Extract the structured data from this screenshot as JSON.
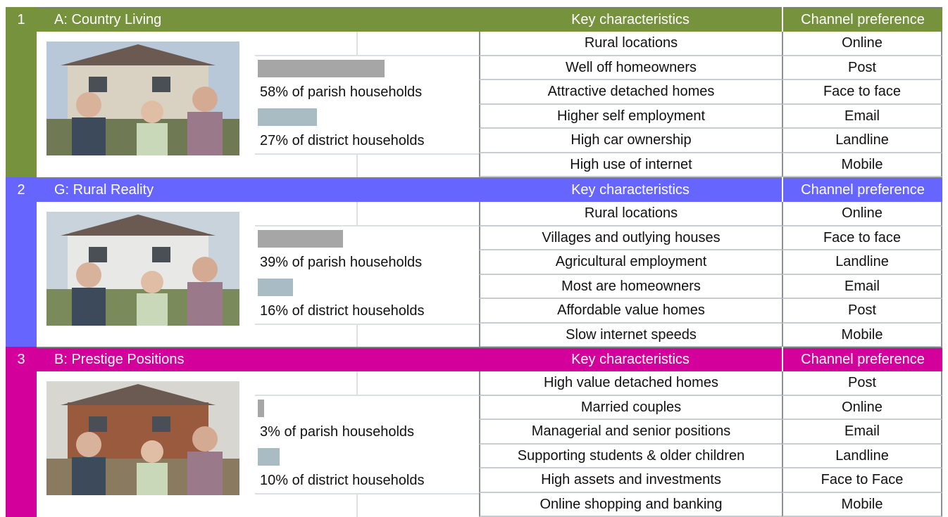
{
  "segments": [
    {
      "number": "1",
      "title": "A: Country Living",
      "header_characteristics": "Key characteristics",
      "header_channel": "Channel preference",
      "color": "#76923c",
      "parish": {
        "value": 58,
        "label": "58% of parish households"
      },
      "district": {
        "value": 27,
        "label": "27% of district households"
      },
      "rows": [
        [
          "Rural locations",
          "Online"
        ],
        [
          "Well off homeowners",
          "Post"
        ],
        [
          "Attractive detached homes",
          "Face to face"
        ],
        [
          "Higher self employment",
          "Email"
        ],
        [
          "High car ownership",
          "Landline"
        ],
        [
          "High use of internet",
          "Mobile"
        ]
      ]
    },
    {
      "number": "2",
      "title": "G: Rural Reality",
      "header_characteristics": "Key characteristics",
      "header_channel": "Channel preference",
      "color": "#6666ff",
      "parish": {
        "value": 39,
        "label": "39% of parish households"
      },
      "district": {
        "value": 16,
        "label": "16% of district households"
      },
      "rows": [
        [
          "Rural locations",
          "Online"
        ],
        [
          "Villages and outlying houses",
          "Face to face"
        ],
        [
          "Agricultural employment",
          "Landline"
        ],
        [
          "Most are homeowners",
          "Email"
        ],
        [
          "Affordable value homes",
          "Post"
        ],
        [
          "Slow internet speeds",
          "Mobile"
        ]
      ]
    },
    {
      "number": "3",
      "title": "B: Prestige Positions",
      "header_characteristics": "Key characteristics",
      "header_channel": "Channel preference",
      "color": "#d4009b",
      "parish": {
        "value": 3,
        "label": "3% of parish households"
      },
      "district": {
        "value": 10,
        "label": "10% of district households"
      },
      "rows": [
        [
          "High value detached homes",
          "Post"
        ],
        [
          "Married couples",
          "Online"
        ],
        [
          "Managerial and senior positions",
          "Email"
        ],
        [
          "Supporting students & older children",
          "Landline"
        ],
        [
          "High assets and investments",
          "Face to Face"
        ],
        [
          "Online shopping and banking",
          "Mobile"
        ]
      ]
    }
  ]
}
